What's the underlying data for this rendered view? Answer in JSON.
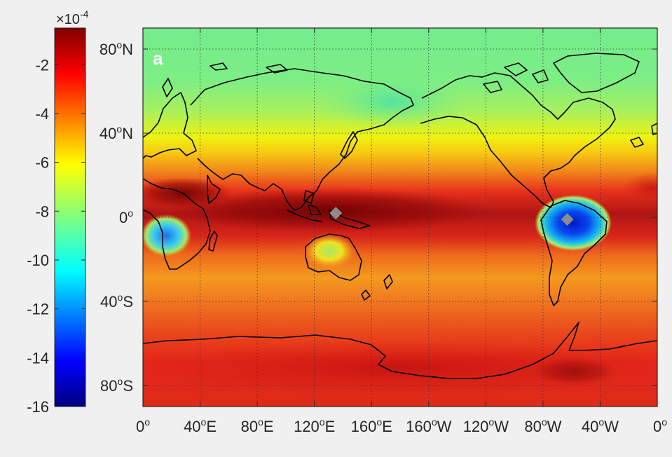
{
  "panel_label": "a",
  "colorbar": {
    "exponent_label": "×10",
    "exponent_power": "-4",
    "ticks": [
      "-2",
      "-4",
      "-6",
      "-8",
      "-10",
      "-12",
      "-14",
      "-16"
    ],
    "tick_values": [
      -2,
      -4,
      -6,
      -8,
      -10,
      -12,
      -14,
      -16
    ],
    "range": [
      -16,
      -0.5
    ],
    "colormap": "jet"
  },
  "map": {
    "projection": "equirectangular",
    "lon_range": [
      0,
      360
    ],
    "lat_range": [
      -90,
      90
    ],
    "grid": true,
    "grid_style": "dotted",
    "lat_ticks": [
      {
        "value": 80,
        "deg": "80",
        "hemi": "N"
      },
      {
        "value": 40,
        "deg": "40",
        "hemi": "N"
      },
      {
        "value": 0,
        "deg": "0",
        "hemi": ""
      },
      {
        "value": -40,
        "deg": "40",
        "hemi": "S"
      },
      {
        "value": -80,
        "deg": "80",
        "hemi": "S"
      }
    ],
    "lon_ticks": [
      {
        "value": 0,
        "deg": "0",
        "hemi": ""
      },
      {
        "value": 40,
        "deg": "40",
        "hemi": "E"
      },
      {
        "value": 80,
        "deg": "80",
        "hemi": "E"
      },
      {
        "value": 120,
        "deg": "120",
        "hemi": "E"
      },
      {
        "value": 160,
        "deg": "160",
        "hemi": "E"
      },
      {
        "value": 200,
        "deg": "160",
        "hemi": "W"
      },
      {
        "value": 240,
        "deg": "120",
        "hemi": "W"
      },
      {
        "value": 280,
        "deg": "80",
        "hemi": "W"
      },
      {
        "value": 320,
        "deg": "40",
        "hemi": "W"
      },
      {
        "value": 360,
        "deg": "0",
        "hemi": ""
      }
    ],
    "markers": [
      {
        "name": "western-pacific-marker",
        "lon": 135,
        "lat": 2,
        "color": "#8c8c8c",
        "shape": "diamond"
      },
      {
        "name": "amazon-marker",
        "lon": 297,
        "lat": -1,
        "color": "#8c8c8c",
        "shape": "diamond"
      }
    ],
    "colors": {
      "polar_band": "#74ec8c",
      "midlat_band": "#f7a21d",
      "tropics_core": "#9e0b0b",
      "amazon_minimum": "#0a2fdc",
      "coastline": "#000000"
    }
  }
}
